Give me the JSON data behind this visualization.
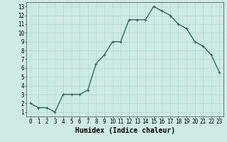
{
  "x": [
    0,
    1,
    2,
    3,
    4,
    5,
    6,
    7,
    8,
    9,
    10,
    11,
    12,
    13,
    14,
    15,
    16,
    17,
    18,
    19,
    20,
    21,
    22,
    23
  ],
  "y": [
    2.0,
    1.5,
    1.5,
    1.0,
    3.0,
    3.0,
    3.0,
    3.5,
    6.5,
    7.5,
    9.0,
    9.0,
    11.5,
    11.5,
    11.5,
    13.0,
    12.5,
    12.0,
    11.0,
    10.5,
    9.0,
    8.5,
    7.5,
    5.5
  ],
  "xlim": [
    -0.5,
    23.5
  ],
  "ylim": [
    0.5,
    13.5
  ],
  "xticks": [
    0,
    1,
    2,
    3,
    4,
    5,
    6,
    7,
    8,
    9,
    10,
    11,
    12,
    13,
    14,
    15,
    16,
    17,
    18,
    19,
    20,
    21,
    22,
    23
  ],
  "yticks": [
    1,
    2,
    3,
    4,
    5,
    6,
    7,
    8,
    9,
    10,
    11,
    12,
    13
  ],
  "xlabel": "Humidex (Indice chaleur)",
  "line_color": "#2d6b5e",
  "bg_color": "#ceeae5",
  "grid_color": "#b8d8d3",
  "marker": "+",
  "markersize": 3,
  "linewidth": 1.0,
  "xlabel_fontsize": 7,
  "tick_fontsize": 5.5
}
